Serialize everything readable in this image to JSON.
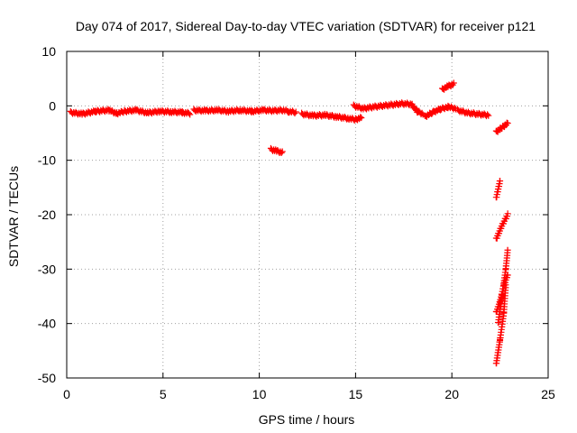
{
  "chart_data": {
    "type": "scatter",
    "title": "Day 074 of 2017, Sidereal Day-to-day VTEC variation (SDTVAR) for receiver p121",
    "xlabel": "GPS time / hours",
    "ylabel": "SDTVAR / TECUs",
    "xlim": [
      0,
      25
    ],
    "ylim": [
      -50,
      10
    ],
    "xticks": [
      0,
      5,
      10,
      15,
      20,
      25
    ],
    "yticks": [
      -50,
      -40,
      -30,
      -20,
      -10,
      0,
      10
    ],
    "grid": true,
    "marker": "+",
    "color": "#ff0000",
    "series": [
      {
        "name": "SDTVAR",
        "segments": [
          {
            "x": [
              0.2,
              0.8,
              1.5,
              2.2,
              2.6,
              3.0,
              3.6,
              4.2,
              4.8,
              5.4,
              6.0,
              6.4
            ],
            "y": [
              -1.2,
              -1.5,
              -1.0,
              -0.8,
              -1.4,
              -1.0,
              -0.8,
              -1.3,
              -1.0,
              -1.1,
              -1.2,
              -1.4
            ]
          },
          {
            "x": [
              6.6,
              7.2,
              7.8,
              8.4,
              9.0,
              9.6,
              10.2,
              10.7,
              11.2,
              11.5,
              11.9
            ],
            "y": [
              -0.8,
              -0.9,
              -0.8,
              -1.0,
              -0.8,
              -1.0,
              -0.8,
              -0.9,
              -0.8,
              -1.0,
              -1.2
            ]
          },
          {
            "x": [
              10.6,
              10.9,
              11.2
            ],
            "y": [
              -8.0,
              -8.3,
              -8.6
            ]
          },
          {
            "x": [
              12.2,
              12.8,
              13.4,
              14.0,
              14.6,
              15.0,
              15.3
            ],
            "y": [
              -1.5,
              -1.8,
              -1.7,
              -2.0,
              -2.3,
              -2.5,
              -2.2
            ]
          },
          {
            "x": [
              14.9,
              15.4,
              15.9,
              16.4,
              16.9,
              17.4,
              17.9,
              18.2,
              18.5
            ],
            "y": [
              0.0,
              -0.5,
              -0.2,
              0.0,
              0.2,
              0.4,
              0.3,
              -1.0,
              -1.5
            ]
          },
          {
            "x": [
              18.6,
              19.0,
              19.4,
              19.8,
              20.2
            ],
            "y": [
              -2.0,
              -1.2,
              -0.6,
              -0.2,
              -0.5
            ]
          },
          {
            "x": [
              19.5,
              19.8,
              20.1
            ],
            "y": [
              3.0,
              3.6,
              4.0
            ]
          },
          {
            "x": [
              20.3,
              20.8,
              21.3,
              21.9
            ],
            "y": [
              -0.8,
              -1.3,
              -1.5,
              -1.7
            ]
          },
          {
            "x": [
              22.3,
              22.6,
              22.9
            ],
            "y": [
              -4.8,
              -4.0,
              -3.2
            ]
          },
          {
            "x": [
              22.3,
              22.5
            ],
            "y": [
              -17.0,
              -13.8
            ]
          },
          {
            "x": [
              22.3,
              22.6,
              22.9
            ],
            "y": [
              -24.5,
              -22.0,
              -20.0
            ]
          },
          {
            "x": [
              22.3,
              22.5,
              22.7,
              22.9
            ],
            "y": [
              -38.0,
              -36.0,
              -33.0,
              -31.0
            ]
          },
          {
            "x": [
              22.4,
              22.6,
              22.8,
              22.9
            ],
            "y": [
              -40.0,
              -35.0,
              -30.0,
              -26.5
            ]
          },
          {
            "x": [
              22.3,
              22.5,
              22.7,
              22.8
            ],
            "y": [
              -47.5,
              -43.0,
              -38.0,
              -33.0
            ]
          }
        ]
      }
    ]
  }
}
